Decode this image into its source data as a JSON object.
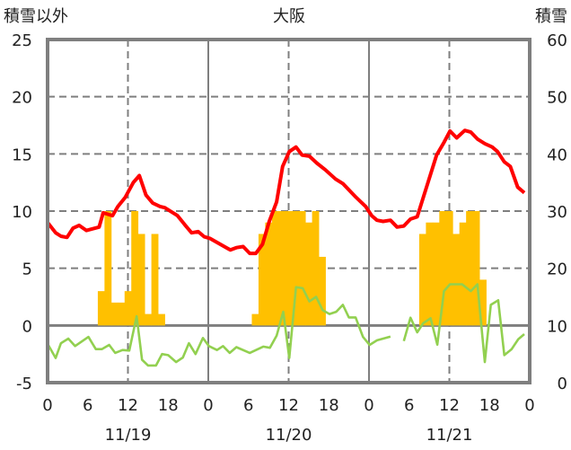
{
  "chart_data": {
    "type": "line",
    "title": "大阪",
    "ylabel_left": "積雪以外",
    "ylabel_right": "積雪",
    "ylim_left": [
      -5,
      25
    ],
    "ylim_right": [
      0,
      60
    ],
    "yticks_left": [
      "-5",
      "0",
      "5",
      "10",
      "15",
      "20",
      "25"
    ],
    "yticks_right": [
      "0",
      "10",
      "20",
      "30",
      "40",
      "50",
      "60"
    ],
    "xlim_hours": [
      0,
      72
    ],
    "xtick_labels": [
      "0",
      "6",
      "12",
      "18",
      "0",
      "6",
      "12",
      "18",
      "0",
      "6",
      "12",
      "18",
      "0"
    ],
    "date_labels": [
      "11/19",
      "11/20",
      "11/21"
    ],
    "grid": true,
    "colors": {
      "red_series": "#ff0000",
      "green_series": "#92d050",
      "bars": "#ffc000",
      "axis": "#7f7f7f"
    },
    "series": [
      {
        "name": "red",
        "x": [
          0,
          1.2,
          2,
          2.9,
          3.8,
          4.7,
          5.8,
          7.7,
          8.3,
          9.7,
          10.5,
          11.6,
          12.8,
          13.7,
          14.7,
          15.7,
          16.8,
          17.5,
          19.4,
          20.5,
          21.5,
          22.5,
          23.4,
          24.3,
          27.3,
          28.2,
          29.2,
          30.2,
          31.1,
          32.1,
          33.1,
          34.2,
          35.1,
          36.1,
          37.1,
          38,
          39.1,
          40.2,
          41.5,
          43,
          44.1,
          45.9,
          47.5,
          48.4,
          49.2,
          50.1,
          51.2,
          52.2,
          53.2,
          54.2,
          55.2,
          56.6,
          58.1,
          59.2,
          60.1,
          61.1,
          62.3,
          63.2,
          64.2,
          65.3,
          66.4,
          67.2,
          68.2,
          69.1,
          70.2,
          71.2
        ],
        "y": [
          9.0,
          8.1,
          7.8,
          7.7,
          8.5,
          8.75,
          8.3,
          8.6,
          9.85,
          9.6,
          10.4,
          11.2,
          12.5,
          13.1,
          11.4,
          10.7,
          10.4,
          10.3,
          9.6,
          8.8,
          8.1,
          8.2,
          7.75,
          7.6,
          6.6,
          6.8,
          6.9,
          6.3,
          6.3,
          7.1,
          9.1,
          10.8,
          13.9,
          15.2,
          15.6,
          14.9,
          14.8,
          14.2,
          13.6,
          12.8,
          12.4,
          11.3,
          10.4,
          9.6,
          9.2,
          9.1,
          9.2,
          8.6,
          8.7,
          9.3,
          9.5,
          12.1,
          14.9,
          16.0,
          17.0,
          16.4,
          17.05,
          16.9,
          16.3,
          15.9,
          15.6,
          15.2,
          14.3,
          13.9,
          12.1,
          11.6
        ]
      },
      {
        "name": "green",
        "x": [
          0.1,
          1.2,
          2,
          3.1,
          4.1,
          6.1,
          7.2,
          8.1,
          9.2,
          10.1,
          11.2,
          12.2,
          13.3,
          14.1,
          15,
          16.2,
          17.1,
          18,
          19.2,
          20.2,
          21.1,
          22.1,
          23.2,
          24.1,
          25.3,
          26.2,
          27.2,
          28.2,
          30.2,
          32.2,
          33.2,
          34.2,
          35.2,
          36.1,
          37.1,
          38.1,
          39.1,
          40.1,
          41.1,
          42.1,
          43.1,
          44.1,
          45,
          46,
          47.1,
          48.1,
          49.2,
          51.2,
          null,
          53.2,
          54.2,
          55.2,
          56.1,
          57.2,
          58.2,
          59.2,
          60.1,
          61.9,
          63.2,
          64.2,
          65.3,
          66.2,
          67.3,
          68.2,
          69.3,
          70.3,
          71.2
        ],
        "y": [
          -1.7,
          -2.85,
          -1.55,
          -1.15,
          -1.8,
          -1.0,
          -2.07,
          -2.07,
          -1.7,
          -2.4,
          -2.15,
          -2.2,
          0.8,
          -3.0,
          -3.5,
          -3.5,
          -2.5,
          -2.6,
          -3.2,
          -2.8,
          -1.55,
          -2.5,
          -1.1,
          -1.8,
          -2.15,
          -1.8,
          -2.4,
          -1.9,
          -2.4,
          -1.85,
          -1.95,
          -0.9,
          1.2,
          -2.85,
          3.35,
          3.25,
          2.1,
          2.5,
          1.33,
          1.0,
          1.2,
          1.8,
          0.7,
          0.7,
          -1.0,
          -1.7,
          -1.3,
          -0.97,
          null,
          -1.36,
          0.68,
          -0.6,
          0.2,
          0.63,
          -1.68,
          3.0,
          3.6,
          3.6,
          3.0,
          3.6,
          -3.2,
          1.8,
          2.2,
          -2.6,
          -2.07,
          -1.2,
          -0.76
        ]
      }
    ],
    "bars": {
      "name": "積雪",
      "hours": [
        8,
        9,
        10,
        11,
        12,
        13,
        14,
        15,
        16,
        17,
        31,
        32,
        33,
        34,
        35,
        36,
        37,
        38,
        39,
        40,
        41,
        56,
        57,
        58,
        59,
        60,
        61,
        62,
        63,
        64,
        65
      ],
      "values": [
        3,
        10,
        2,
        2,
        3,
        10,
        8,
        1,
        8,
        1,
        1,
        8,
        9,
        10,
        10,
        10,
        10,
        10,
        9,
        10,
        6,
        8,
        9,
        9,
        10,
        10,
        8,
        9,
        10,
        10,
        4
      ]
    }
  }
}
